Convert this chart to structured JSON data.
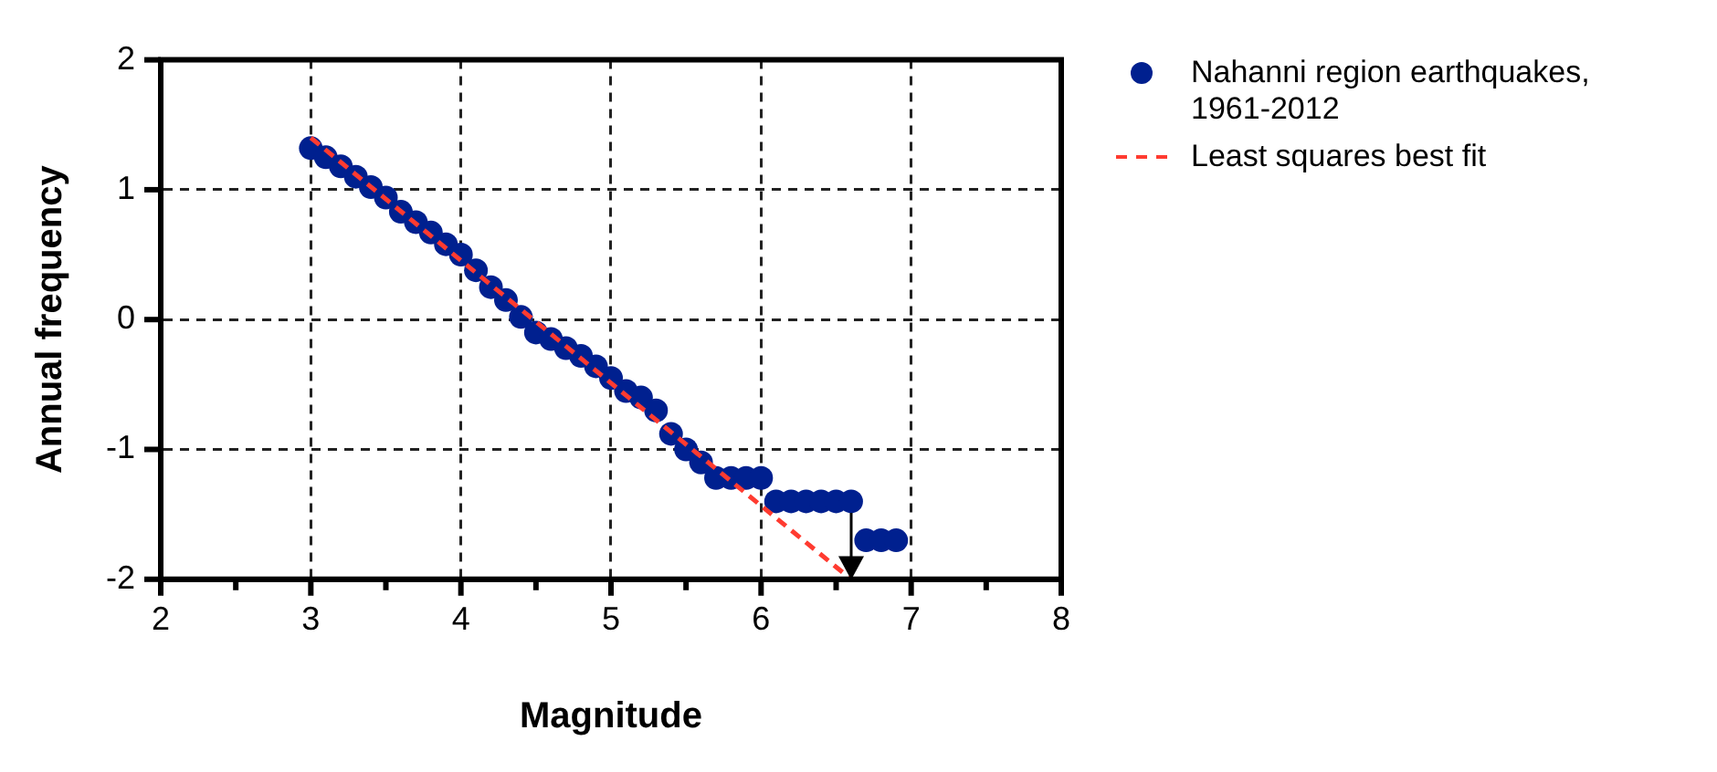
{
  "chart_data": {
    "type": "scatter",
    "xlabel": "Magnitude",
    "ylabel": "Annual frequency",
    "series": [
      {
        "name": "Nahanni region earthquakes, 1961-2012",
        "type": "scatter",
        "color": "#00208f",
        "x": [
          3.0,
          3.1,
          3.2,
          3.3,
          3.4,
          3.5,
          3.6,
          3.7,
          3.8,
          3.9,
          4.0,
          4.1,
          4.2,
          4.3,
          4.4,
          4.5,
          4.6,
          4.7,
          4.8,
          4.9,
          5.0,
          5.1,
          5.2,
          5.3,
          5.4,
          5.5,
          5.6,
          5.7,
          5.8,
          5.9,
          6.0,
          6.1,
          6.2,
          6.3,
          6.4,
          6.5,
          6.6,
          6.7,
          6.8,
          6.9
        ],
        "values": [
          1.32,
          1.25,
          1.18,
          1.1,
          1.02,
          0.94,
          0.83,
          0.75,
          0.67,
          0.58,
          0.5,
          0.38,
          0.25,
          0.15,
          0.02,
          -0.1,
          -0.15,
          -0.22,
          -0.28,
          -0.36,
          -0.45,
          -0.55,
          -0.6,
          -0.7,
          -0.88,
          -1.0,
          -1.1,
          -1.22,
          -1.22,
          -1.22,
          -1.22,
          -1.4,
          -1.4,
          -1.4,
          -1.4,
          -1.4,
          -1.4,
          -1.7,
          -1.7,
          -1.7
        ]
      },
      {
        "name": "Least squares best fit",
        "type": "line",
        "color": "#ff3b30",
        "line_style": "dashed",
        "marker": "none",
        "x": [
          3.0,
          6.6
        ],
        "values": [
          1.4,
          -2.0
        ]
      }
    ],
    "xlim": [
      2,
      8
    ],
    "xticks": [
      2,
      {
        "value": 2.5,
        "label": null
      },
      3,
      {
        "value": 3.5,
        "label": null
      },
      4,
      {
        "value": 4.5,
        "label": null
      },
      5,
      {
        "value": 5.5,
        "label": null
      },
      6,
      {
        "value": 6.5,
        "label": null
      },
      7,
      {
        "value": 7.5,
        "label": null
      },
      8
    ],
    "ylim": [
      -2,
      2
    ],
    "yticks": [
      -2,
      -1,
      0,
      1,
      2
    ],
    "grid": true,
    "legend": "top right",
    "marker": "circle"
  }
}
